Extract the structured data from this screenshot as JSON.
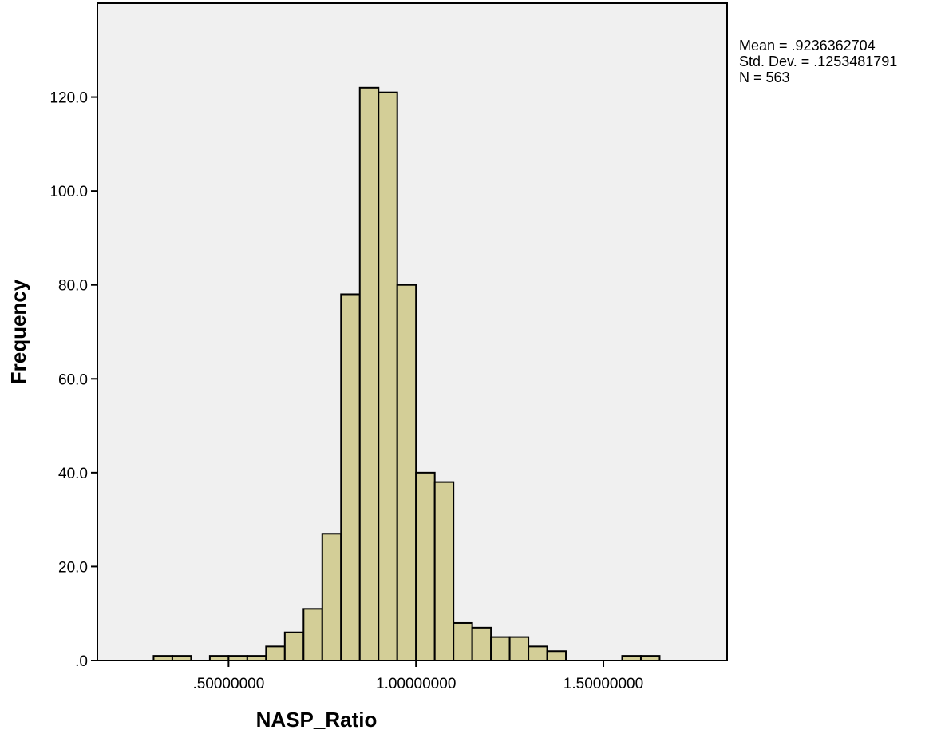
{
  "chart_data": {
    "type": "bar",
    "subtype": "histogram",
    "xlabel": "NASP_Ratio",
    "ylabel": "Frequency",
    "xlim": [
      0.15,
      1.83
    ],
    "ylim": [
      0,
      140
    ],
    "bin_width": 0.05,
    "bins": [
      {
        "start": 0.3,
        "end": 0.35,
        "count": 1
      },
      {
        "start": 0.35,
        "end": 0.4,
        "count": 1
      },
      {
        "start": 0.45,
        "end": 0.5,
        "count": 1
      },
      {
        "start": 0.5,
        "end": 0.55,
        "count": 1
      },
      {
        "start": 0.55,
        "end": 0.6,
        "count": 1
      },
      {
        "start": 0.6,
        "end": 0.65,
        "count": 3
      },
      {
        "start": 0.65,
        "end": 0.7,
        "count": 6
      },
      {
        "start": 0.7,
        "end": 0.75,
        "count": 11
      },
      {
        "start": 0.75,
        "end": 0.8,
        "count": 27
      },
      {
        "start": 0.8,
        "end": 0.85,
        "count": 78
      },
      {
        "start": 0.85,
        "end": 0.9,
        "count": 122
      },
      {
        "start": 0.9,
        "end": 0.95,
        "count": 121
      },
      {
        "start": 0.95,
        "end": 1.0,
        "count": 80
      },
      {
        "start": 1.0,
        "end": 1.05,
        "count": 40
      },
      {
        "start": 1.05,
        "end": 1.1,
        "count": 38
      },
      {
        "start": 1.1,
        "end": 1.15,
        "count": 8
      },
      {
        "start": 1.15,
        "end": 1.2,
        "count": 7
      },
      {
        "start": 1.2,
        "end": 1.25,
        "count": 5
      },
      {
        "start": 1.25,
        "end": 1.3,
        "count": 5
      },
      {
        "start": 1.3,
        "end": 1.35,
        "count": 3
      },
      {
        "start": 1.35,
        "end": 1.4,
        "count": 2
      },
      {
        "start": 1.55,
        "end": 1.6,
        "count": 1
      },
      {
        "start": 1.6,
        "end": 1.65,
        "count": 1
      }
    ],
    "y_ticks": [
      {
        "value": 0,
        "label": ".0"
      },
      {
        "value": 20,
        "label": "20.0"
      },
      {
        "value": 40,
        "label": "40.0"
      },
      {
        "value": 60,
        "label": "60.0"
      },
      {
        "value": 80,
        "label": "80.0"
      },
      {
        "value": 100,
        "label": "100.0"
      },
      {
        "value": 120,
        "label": "120.0"
      }
    ],
    "x_ticks": [
      {
        "value": 0.5,
        "label": ".50000000"
      },
      {
        "value": 1.0,
        "label": "1.00000000"
      },
      {
        "value": 1.5,
        "label": "1.50000000"
      }
    ],
    "stats": {
      "mean": "Mean = .9236362704",
      "std_dev": "Std. Dev. = .1253481791",
      "n": "N = 563"
    },
    "grid": false,
    "legend": "none",
    "colors": {
      "plot_background": "#f0f0f0",
      "bar_fill": "#d3ce97",
      "bar_stroke": "#000000",
      "axis": "#000000"
    }
  }
}
